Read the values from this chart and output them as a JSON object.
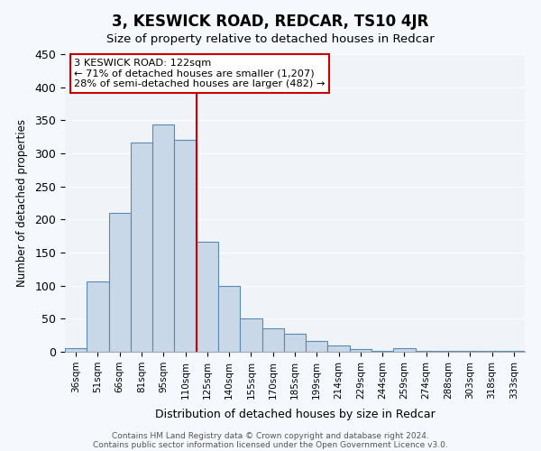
{
  "title": "3, KESWICK ROAD, REDCAR, TS10 4JR",
  "subtitle": "Size of property relative to detached houses in Redcar",
  "xlabel": "Distribution of detached houses by size in Redcar",
  "ylabel": "Number of detached properties",
  "footnote1": "Contains HM Land Registry data © Crown copyright and database right 2024.",
  "footnote2": "Contains public sector information licensed under the Open Government Licence v3.0.",
  "bar_labels": [
    "36sqm",
    "51sqm",
    "66sqm",
    "81sqm",
    "95sqm",
    "110sqm",
    "125sqm",
    "140sqm",
    "155sqm",
    "170sqm",
    "185sqm",
    "199sqm",
    "214sqm",
    "229sqm",
    "244sqm",
    "259sqm",
    "274sqm",
    "288sqm",
    "303sqm",
    "318sqm",
    "333sqm"
  ],
  "bar_values": [
    6,
    107,
    210,
    317,
    343,
    321,
    166,
    99,
    51,
    35,
    27,
    17,
    9,
    4,
    2,
    6,
    2,
    1,
    1,
    1,
    1
  ],
  "bar_color": "#c8d8e8",
  "bar_edge_color": "#5a8ab0",
  "property_line_x": 6,
  "property_line_color": "#cc0000",
  "annotation_title": "3 KESWICK ROAD: 122sqm",
  "annotation_line1": "← 71% of detached houses are smaller (1,207)",
  "annotation_line2": "28% of semi-detached houses are larger (482) →",
  "annotation_box_color": "#cc0000",
  "ylim": [
    0,
    450
  ],
  "background_color": "#f0f4f8",
  "grid_color": "#ffffff"
}
